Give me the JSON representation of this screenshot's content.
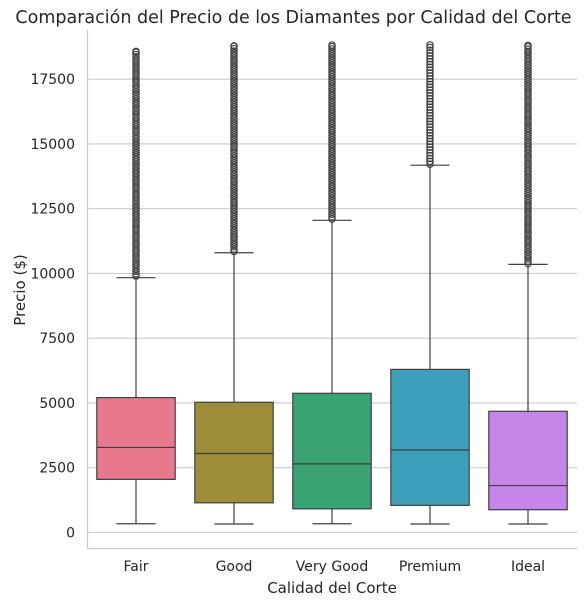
{
  "chart_data": {
    "type": "box",
    "title": "Comparación del Precio de los Diamantes por Calidad del Corte",
    "xlabel": "Calidad del Corte",
    "ylabel": "Precio ($)",
    "ylim": [
      -600,
      19400
    ],
    "yticks": [
      0,
      2500,
      5000,
      7500,
      10000,
      12500,
      15000,
      17500
    ],
    "grid": "horizontal",
    "categories": [
      "Fair",
      "Good",
      "Very Good",
      "Premium",
      "Ideal"
    ],
    "colors": [
      "#e8798c",
      "#9c8d36",
      "#3aa374",
      "#3e9fba",
      "#c685e8"
    ],
    "boxes": [
      {
        "category": "Fair",
        "whisker_low": 337,
        "q1": 2050,
        "median": 3282,
        "q3": 5206,
        "whisker_high": 9836,
        "outlier_min": 9900,
        "outlier_max": 18574
      },
      {
        "category": "Good",
        "whisker_low": 327,
        "q1": 1145,
        "median": 3050,
        "q3": 5028,
        "whisker_high": 10800,
        "outlier_min": 10850,
        "outlier_max": 18788
      },
      {
        "category": "Very Good",
        "whisker_low": 336,
        "q1": 912,
        "median": 2648,
        "q3": 5373,
        "whisker_high": 12052,
        "outlier_min": 12100,
        "outlier_max": 18818
      },
      {
        "category": "Premium",
        "whisker_low": 326,
        "q1": 1046,
        "median": 3185,
        "q3": 6296,
        "whisker_high": 14180,
        "outlier_min": 14220,
        "outlier_max": 18823
      },
      {
        "category": "Ideal",
        "whisker_low": 326,
        "q1": 878,
        "median": 1810,
        "q3": 4678,
        "whisker_high": 10350,
        "outlier_min": 10380,
        "outlier_max": 18806
      }
    ]
  }
}
